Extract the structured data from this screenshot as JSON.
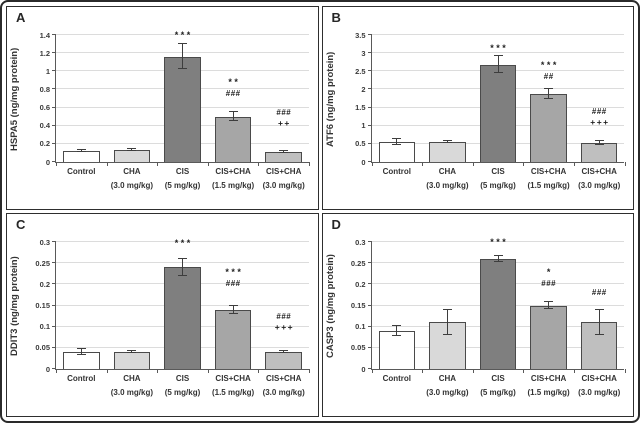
{
  "palette": {
    "bar_fills": [
      "#ffffff",
      "#d9d9d9",
      "#7f7f7f",
      "#a6a6a6",
      "#bfbfbf"
    ],
    "bar_border": "#4a4a4a",
    "error_color": "#3d3d3d",
    "gridline_color": "#dcdcdc",
    "axis_color": "#595959",
    "text_color": "#333333",
    "figure_border": "#2a2a2a"
  },
  "chart_data": [
    {
      "type": "bar",
      "panel_label": "A",
      "ylabel": "HSPA5 (ng/mg protein)",
      "xlabel": "",
      "ylim": [
        0,
        1.4
      ],
      "grid": true,
      "legend": null,
      "yticks": [
        {
          "v": 0,
          "label": "0"
        },
        {
          "v": 0.2,
          "label": "0.2"
        },
        {
          "v": 0.4,
          "label": "0.4"
        },
        {
          "v": 0.6,
          "label": "0.6"
        },
        {
          "v": 0.8,
          "label": "0.8"
        },
        {
          "v": 1,
          "label": "1"
        },
        {
          "v": 1.2,
          "label": "1.2"
        },
        {
          "v": 1.4,
          "label": "1.4"
        }
      ],
      "categories": [
        [
          "Control",
          ""
        ],
        [
          "CHA",
          "(3.0 mg/kg)"
        ],
        [
          "CIS",
          "(5 mg/kg)"
        ],
        [
          "CIS+CHA",
          "(1.5 mg/kg)"
        ],
        [
          "CIS+CHA",
          "(3.0 mg/kg)"
        ]
      ],
      "values": [
        0.12,
        0.13,
        1.16,
        0.5,
        0.11
      ],
      "errors": [
        0.015,
        0.01,
        0.14,
        0.05,
        0.008
      ],
      "annotations": [
        [],
        [],
        [
          "***"
        ],
        [
          "**",
          "###"
        ],
        [
          "###",
          "++"
        ]
      ],
      "ann_base": [
        null,
        null,
        1.33,
        0.7,
        0.36
      ]
    },
    {
      "type": "bar",
      "panel_label": "B",
      "ylabel": "ATF6 (ng/mg protein)",
      "xlabel": "",
      "ylim": [
        0,
        3.5
      ],
      "grid": true,
      "legend": null,
      "yticks": [
        {
          "v": 0,
          "label": "0"
        },
        {
          "v": 0.5,
          "label": "0.5"
        },
        {
          "v": 1,
          "label": "1"
        },
        {
          "v": 1.5,
          "label": "1.5"
        },
        {
          "v": 2,
          "label": "2"
        },
        {
          "v": 2.5,
          "label": "2.5"
        },
        {
          "v": 3,
          "label": "3"
        },
        {
          "v": 3.5,
          "label": "3.5"
        }
      ],
      "categories": [
        [
          "Control",
          ""
        ],
        [
          "CHA",
          "(3.0 mg/kg)"
        ],
        [
          "CIS",
          "(5 mg/kg)"
        ],
        [
          "CIS+CHA",
          "(1.5 mg/kg)"
        ],
        [
          "CIS+CHA",
          "(3.0 mg/kg)"
        ]
      ],
      "values": [
        0.55,
        0.55,
        2.68,
        1.87,
        0.53
      ],
      "errors": [
        0.08,
        0.02,
        0.24,
        0.13,
        0.05
      ],
      "annotations": [
        [],
        [],
        [
          "***"
        ],
        [
          "***",
          "##"
        ],
        [
          "###",
          "+++"
        ]
      ],
      "ann_base": [
        null,
        null,
        2.97,
        2.2,
        0.93
      ]
    },
    {
      "type": "bar",
      "panel_label": "C",
      "ylabel": "DDIT3 (ng/mg protein)",
      "xlabel": "",
      "ylim": [
        0,
        0.3
      ],
      "grid": true,
      "legend": null,
      "yticks": [
        {
          "v": 0,
          "label": "0"
        },
        {
          "v": 0.05,
          "label": "0.05"
        },
        {
          "v": 0.1,
          "label": "0.1"
        },
        {
          "v": 0.15,
          "label": "0.15"
        },
        {
          "v": 0.2,
          "label": "0.2"
        },
        {
          "v": 0.25,
          "label": "0.25"
        },
        {
          "v": 0.3,
          "label": "0.3"
        }
      ],
      "categories": [
        [
          "Control",
          ""
        ],
        [
          "CHA",
          "(3.0 mg/kg)"
        ],
        [
          "CIS",
          "(5 mg/kg)"
        ],
        [
          "CIS+CHA",
          "(1.5 mg/kg)"
        ],
        [
          "CIS+CHA",
          "(3.0 mg/kg)"
        ]
      ],
      "values": [
        0.04,
        0.04,
        0.24,
        0.14,
        0.04
      ],
      "errors": [
        0.007,
        0.003,
        0.02,
        0.009,
        0.002
      ],
      "annotations": [
        [],
        [],
        [
          "***"
        ],
        [
          "***",
          "###"
        ],
        [
          "###",
          "+++"
        ]
      ],
      "ann_base": [
        null,
        null,
        0.283,
        0.19,
        0.085
      ]
    },
    {
      "type": "bar",
      "panel_label": "D",
      "ylabel": "CASP3 (ng/mg protein)",
      "xlabel": "",
      "ylim": [
        0,
        0.3
      ],
      "grid": true,
      "legend": null,
      "yticks": [
        {
          "v": 0,
          "label": "0"
        },
        {
          "v": 0.05,
          "label": "0.05"
        },
        {
          "v": 0.1,
          "label": "0.1"
        },
        {
          "v": 0.15,
          "label": "0.15"
        },
        {
          "v": 0.2,
          "label": "0.2"
        },
        {
          "v": 0.25,
          "label": "0.25"
        },
        {
          "v": 0.3,
          "label": "0.3"
        }
      ],
      "categories": [
        [
          "Control",
          ""
        ],
        [
          "CHA",
          "(3.0 mg/kg)"
        ],
        [
          "CIS",
          "(5 mg/kg)"
        ],
        [
          "CIS+CHA",
          "(1.5 mg/kg)"
        ],
        [
          "CIS+CHA",
          "(3.0 mg/kg)"
        ]
      ],
      "values": [
        0.09,
        0.11,
        0.26,
        0.15,
        0.11
      ],
      "errors": [
        0.012,
        0.03,
        0.008,
        0.008,
        0.03
      ],
      "annotations": [
        [],
        [],
        [
          "***"
        ],
        [
          "*",
          "###"
        ],
        [
          "###"
        ]
      ],
      "ann_base": [
        null,
        null,
        0.287,
        0.19,
        0.168
      ]
    }
  ]
}
